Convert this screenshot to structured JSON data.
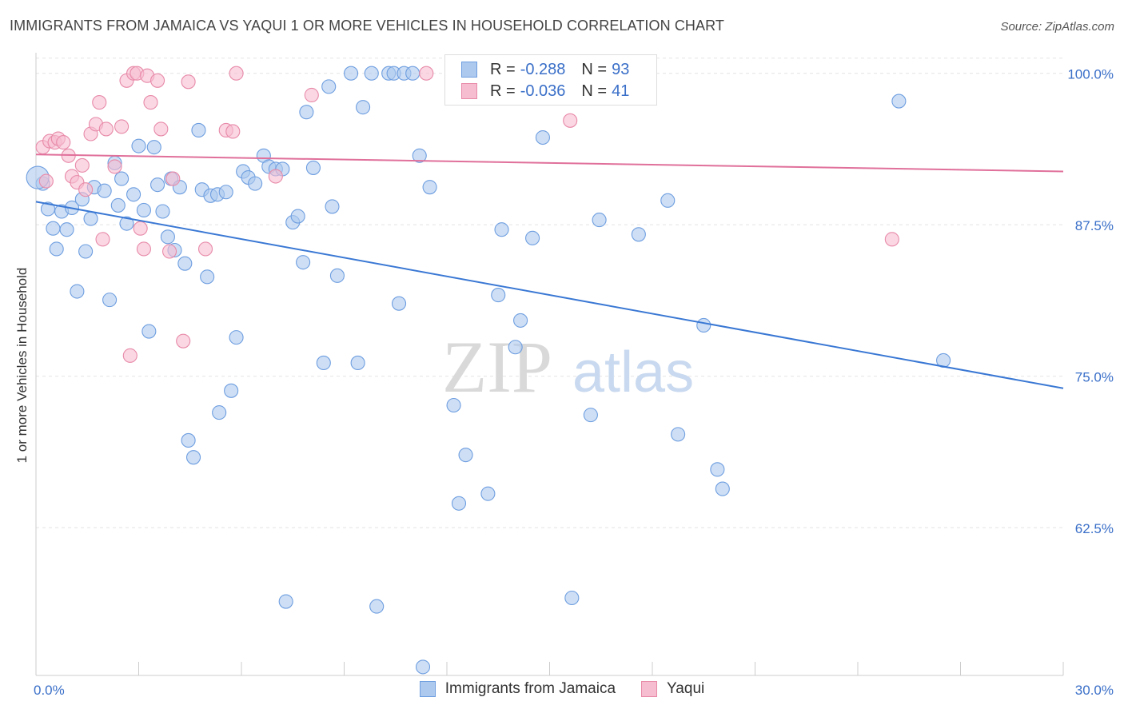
{
  "header": {
    "title": "IMMIGRANTS FROM JAMAICA VS YAQUI 1 OR MORE VEHICLES IN HOUSEHOLD CORRELATION CHART",
    "source": "Source: ZipAtlas.com"
  },
  "watermark": {
    "zip": "ZIP",
    "atlas": "atlas"
  },
  "legend": {
    "series": [
      {
        "r_label": "R =",
        "r_value": "-0.288",
        "n_label": "N =",
        "n_value": "93",
        "fill": "#aec9ee",
        "stroke": "#6e9ee0"
      },
      {
        "r_label": "R =",
        "r_value": "-0.036",
        "n_label": "N =",
        "n_value": "41",
        "fill": "#f6bcd0",
        "stroke": "#e88aa8"
      }
    ]
  },
  "bottom_legend": {
    "items": [
      {
        "label": "Immigrants from Jamaica"
      },
      {
        "label": "Yaqui"
      }
    ]
  },
  "chart_data": {
    "type": "scatter",
    "title": "IMMIGRANTS FROM JAMAICA VS YAQUI 1 OR MORE VEHICLES IN HOUSEHOLD CORRELATION CHART",
    "xlabel": "",
    "ylabel": "1 or more Vehicles in Household",
    "xlim": [
      0,
      30
    ],
    "ylim": [
      50.3,
      101.3
    ],
    "x_tick_labels": [
      "0.0%",
      "30.0%"
    ],
    "y_ticks": [
      62.5,
      75.0,
      87.5,
      100.0
    ],
    "y_tick_labels": [
      "62.5%",
      "75.0%",
      "87.5%",
      "100.0%"
    ],
    "colors": {
      "blue": "#3a78d4",
      "pink": "#e0709a",
      "tick_label": "#3a6fc8",
      "grid": "#e4e4e4"
    },
    "series": [
      {
        "name": "Immigrants from Jamaica",
        "trend": [
          [
            0,
            89.4
          ],
          [
            30,
            74.0
          ]
        ],
        "points": [
          [
            0.2,
            90.9
          ],
          [
            0.35,
            88.8
          ],
          [
            0.5,
            87.2
          ],
          [
            0.6,
            85.5
          ],
          [
            0.75,
            88.6
          ],
          [
            0.9,
            87.1
          ],
          [
            1.05,
            88.9
          ],
          [
            1.2,
            82.0
          ],
          [
            1.35,
            89.6
          ],
          [
            1.45,
            85.3
          ],
          [
            1.6,
            88.0
          ],
          [
            1.7,
            90.6
          ],
          [
            2.0,
            90.3
          ],
          [
            2.15,
            81.3
          ],
          [
            2.3,
            92.6
          ],
          [
            2.4,
            89.1
          ],
          [
            2.5,
            91.3
          ],
          [
            2.65,
            87.6
          ],
          [
            2.85,
            90.0
          ],
          [
            3.0,
            94.0
          ],
          [
            3.15,
            88.7
          ],
          [
            3.3,
            78.7
          ],
          [
            3.45,
            93.9
          ],
          [
            3.55,
            90.8
          ],
          [
            3.7,
            88.6
          ],
          [
            3.85,
            86.5
          ],
          [
            3.95,
            91.3
          ],
          [
            4.05,
            85.4
          ],
          [
            4.2,
            90.6
          ],
          [
            4.35,
            84.3
          ],
          [
            4.45,
            69.7
          ],
          [
            4.6,
            68.3
          ],
          [
            4.75,
            95.3
          ],
          [
            4.85,
            90.4
          ],
          [
            5.0,
            83.2
          ],
          [
            5.1,
            89.9
          ],
          [
            5.3,
            90.0
          ],
          [
            5.35,
            72.0
          ],
          [
            5.55,
            90.2
          ],
          [
            5.7,
            73.8
          ],
          [
            5.85,
            78.2
          ],
          [
            6.05,
            91.9
          ],
          [
            6.2,
            91.4
          ],
          [
            6.4,
            90.9
          ],
          [
            6.65,
            93.2
          ],
          [
            6.8,
            92.3
          ],
          [
            7.0,
            92.1
          ],
          [
            7.2,
            92.1
          ],
          [
            7.3,
            56.4
          ],
          [
            7.5,
            87.7
          ],
          [
            7.65,
            88.2
          ],
          [
            7.8,
            84.4
          ],
          [
            7.9,
            96.8
          ],
          [
            8.1,
            92.2
          ],
          [
            8.4,
            76.1
          ],
          [
            8.55,
            98.9
          ],
          [
            8.65,
            89.0
          ],
          [
            8.8,
            83.3
          ],
          [
            9.4,
            76.1
          ],
          [
            9.55,
            97.2
          ],
          [
            9.8,
            100.0
          ],
          [
            9.95,
            56.0
          ],
          [
            10.3,
            100.0
          ],
          [
            10.45,
            100.0
          ],
          [
            10.6,
            81.0
          ],
          [
            10.75,
            100.0
          ],
          [
            11.0,
            100.0
          ],
          [
            11.2,
            93.2
          ],
          [
            11.3,
            51.0
          ],
          [
            11.5,
            90.6
          ],
          [
            12.2,
            72.6
          ],
          [
            12.35,
            64.5
          ],
          [
            12.55,
            68.5
          ],
          [
            13.2,
            65.3
          ],
          [
            13.5,
            81.7
          ],
          [
            13.6,
            87.1
          ],
          [
            14.0,
            77.4
          ],
          [
            14.15,
            79.6
          ],
          [
            14.5,
            86.4
          ],
          [
            14.8,
            94.7
          ],
          [
            15.65,
            56.7
          ],
          [
            16.2,
            71.8
          ],
          [
            16.45,
            87.9
          ],
          [
            17.6,
            86.7
          ],
          [
            18.45,
            89.5
          ],
          [
            18.75,
            70.2
          ],
          [
            19.5,
            79.2
          ],
          [
            19.9,
            67.3
          ],
          [
            20.05,
            65.7
          ],
          [
            25.2,
            97.7
          ],
          [
            26.5,
            76.3
          ],
          [
            0.05,
            91.4
          ],
          [
            9.2,
            100.0
          ]
        ]
      },
      {
        "name": "Yaqui",
        "trend": [
          [
            0,
            93.3
          ],
          [
            30,
            91.9
          ]
        ],
        "points": [
          [
            0.2,
            93.9
          ],
          [
            0.3,
            91.1
          ],
          [
            0.4,
            94.4
          ],
          [
            0.55,
            94.3
          ],
          [
            0.65,
            94.6
          ],
          [
            0.8,
            94.3
          ],
          [
            0.95,
            93.2
          ],
          [
            1.05,
            91.5
          ],
          [
            1.2,
            91.0
          ],
          [
            1.35,
            92.4
          ],
          [
            1.45,
            90.4
          ],
          [
            1.6,
            95.0
          ],
          [
            1.75,
            95.8
          ],
          [
            1.85,
            97.6
          ],
          [
            1.95,
            86.3
          ],
          [
            2.05,
            95.4
          ],
          [
            2.3,
            92.3
          ],
          [
            2.5,
            95.6
          ],
          [
            2.65,
            99.4
          ],
          [
            2.75,
            76.7
          ],
          [
            2.85,
            100.0
          ],
          [
            2.95,
            100.0
          ],
          [
            3.05,
            87.2
          ],
          [
            3.15,
            85.5
          ],
          [
            3.25,
            99.8
          ],
          [
            3.35,
            97.6
          ],
          [
            3.55,
            99.4
          ],
          [
            3.65,
            95.4
          ],
          [
            3.9,
            85.3
          ],
          [
            4.0,
            91.3
          ],
          [
            4.3,
            77.9
          ],
          [
            4.45,
            99.3
          ],
          [
            4.95,
            85.5
          ],
          [
            5.55,
            95.3
          ],
          [
            5.75,
            95.2
          ],
          [
            5.85,
            100.0
          ],
          [
            7.0,
            91.5
          ],
          [
            8.05,
            98.2
          ],
          [
            11.4,
            100.0
          ],
          [
            15.6,
            96.1
          ],
          [
            25.0,
            86.3
          ]
        ]
      }
    ]
  }
}
